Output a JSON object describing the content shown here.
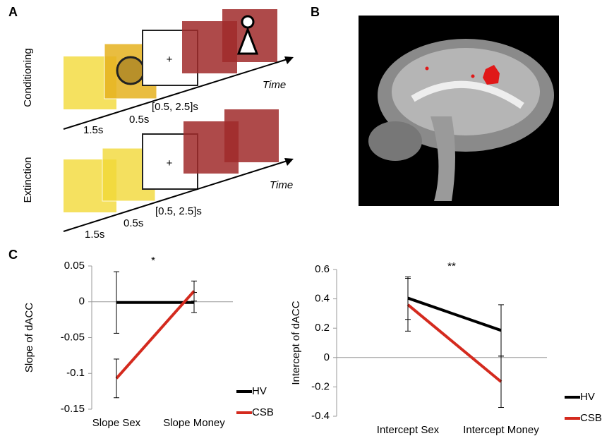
{
  "panel_labels": [
    "A",
    "B",
    "C"
  ],
  "diagram": {
    "conditioning": {
      "label": "Conditioning",
      "fixation": "+",
      "axis_label": "Time",
      "durations": [
        "1.5s",
        "0.5s",
        "[0.5, 2.5]s"
      ]
    },
    "extinction": {
      "label": "Extinction",
      "fixation": "+",
      "axis_label": "Time",
      "durations": [
        "1.5s",
        "0.5s",
        "[0.5, 2.5]s"
      ]
    }
  },
  "chart_data": [
    {
      "type": "line",
      "ylabel": "Slope of dACC",
      "annotation": "*",
      "categories": [
        "Slope Sex",
        "Slope Money"
      ],
      "ylim": [
        -0.15,
        0.05
      ],
      "yticks": [
        -0.15,
        -0.1,
        -0.05,
        0,
        0.05
      ],
      "series": [
        {
          "name": "HV",
          "color": "#000000",
          "values": [
            -0.001,
            -0.001
          ],
          "errors": [
            0.043,
            0.014
          ]
        },
        {
          "name": "CSB",
          "color": "#d42a1e",
          "values": [
            -0.107,
            0.015
          ],
          "errors": [
            0.027,
            0.014
          ]
        }
      ]
    },
    {
      "type": "line",
      "ylabel": "Intercept of dACC",
      "annotation": "**",
      "categories": [
        "Intercept Sex",
        "Intercept Money"
      ],
      "ylim": [
        -0.4,
        0.6
      ],
      "yticks": [
        -0.4,
        -0.2,
        0,
        0.2,
        0.4,
        0.6
      ],
      "series": [
        {
          "name": "HV",
          "color": "#000000",
          "values": [
            0.405,
            0.185
          ],
          "errors": [
            0.145,
            0.175
          ]
        },
        {
          "name": "CSB",
          "color": "#d42a1e",
          "values": [
            0.36,
            -0.165
          ],
          "errors": [
            0.18,
            0.175
          ]
        }
      ]
    }
  ]
}
